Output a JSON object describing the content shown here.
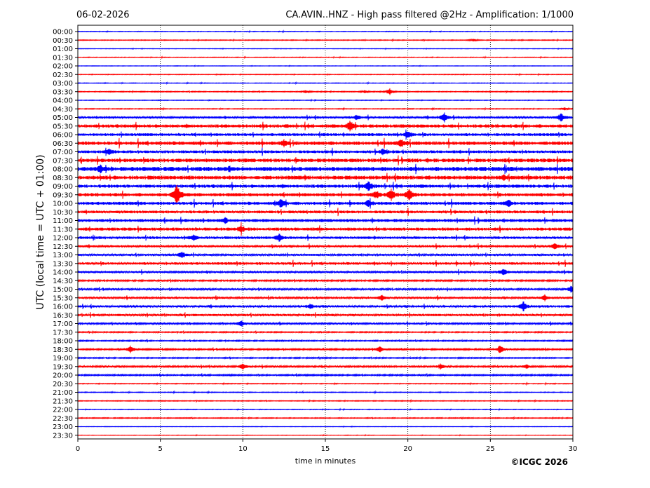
{
  "header": {
    "date": "06-02-2026",
    "title": "CA.AVIN..HNZ - High pass filtered @2Hz - Amplification: 1/1000"
  },
  "footer": {
    "copyright": "©ICGC 2026"
  },
  "chart_data": {
    "type": "line",
    "title": "CA.AVIN..HNZ - High pass filtered @2Hz - Amplification: 1/1000",
    "xlabel": "time in minutes",
    "ylabel": "UTC (local time = UTC + 01:00)",
    "xlim": [
      0,
      30
    ],
    "x_ticks": [
      "0",
      "5",
      "10",
      "15",
      "20",
      "25",
      "30"
    ],
    "grid": "vertical dotted every 5 minutes",
    "row_labels": [
      "00:00",
      "00:30",
      "01:00",
      "01:30",
      "02:00",
      "02:30",
      "03:00",
      "03:30",
      "04:00",
      "04:30",
      "05:00",
      "05:30",
      "06:00",
      "06:30",
      "07:00",
      "07:30",
      "08:00",
      "08:30",
      "09:00",
      "09:30",
      "10:00",
      "10:30",
      "11:00",
      "11:30",
      "12:00",
      "12:30",
      "13:00",
      "13:30",
      "14:00",
      "14:30",
      "15:00",
      "15:30",
      "16:00",
      "16:30",
      "17:00",
      "17:30",
      "18:00",
      "18:30",
      "19:00",
      "19:30",
      "20:00",
      "20:30",
      "21:00",
      "21:30",
      "22:00",
      "22:30",
      "23:00",
      "23:30"
    ],
    "row_colors": [
      "#0000ff",
      "#ff0000"
    ],
    "noise_level": [
      0.4,
      0.5,
      0.3,
      0.4,
      0.3,
      0.4,
      0.4,
      0.6,
      0.4,
      0.5,
      1.6,
      2.4,
      2.0,
      2.6,
      2.0,
      2.6,
      3.0,
      2.8,
      2.4,
      2.4,
      2.2,
      2.0,
      2.2,
      2.2,
      1.8,
      1.6,
      1.4,
      1.8,
      1.4,
      1.0,
      1.2,
      1.4,
      1.6,
      1.6,
      1.2,
      0.8,
      0.8,
      1.0,
      0.8,
      1.2,
      1.0,
      0.5,
      0.5,
      0.5,
      0.4,
      0.6,
      0.3,
      0.3
    ],
    "events": [
      {
        "row": "00:30",
        "x": 24.0,
        "amp": 2
      },
      {
        "row": "03:30",
        "x": 18.9,
        "amp": 5
      },
      {
        "row": "03:30",
        "x": 13.8,
        "amp": 2
      },
      {
        "row": "03:30",
        "x": 17.4,
        "amp": 2
      },
      {
        "row": "04:30",
        "x": 29.5,
        "amp": 2
      },
      {
        "row": "05:00",
        "x": 22.2,
        "amp": 6
      },
      {
        "row": "05:00",
        "x": 29.3,
        "amp": 7
      },
      {
        "row": "05:00",
        "x": 16.9,
        "amp": 3
      },
      {
        "row": "05:30",
        "x": 16.5,
        "amp": 7
      },
      {
        "row": "06:00",
        "x": 20.0,
        "amp": 6
      },
      {
        "row": "06:30",
        "x": 12.5,
        "amp": 4
      },
      {
        "row": "06:30",
        "x": 19.6,
        "amp": 5
      },
      {
        "row": "07:00",
        "x": 1.9,
        "amp": 5
      },
      {
        "row": "07:00",
        "x": 18.5,
        "amp": 4
      },
      {
        "row": "08:00",
        "x": 1.4,
        "amp": 5
      },
      {
        "row": "08:00",
        "x": 9.2,
        "amp": 3
      },
      {
        "row": "08:30",
        "x": 25.8,
        "amp": 3
      },
      {
        "row": "09:00",
        "x": 17.6,
        "amp": 7
      },
      {
        "row": "09:30",
        "x": 6.0,
        "amp": 18
      },
      {
        "row": "09:30",
        "x": 19.0,
        "amp": 9
      },
      {
        "row": "09:30",
        "x": 20.1,
        "amp": 9
      },
      {
        "row": "09:30",
        "x": 18.1,
        "amp": 5
      },
      {
        "row": "10:00",
        "x": 12.3,
        "amp": 7
      },
      {
        "row": "10:00",
        "x": 17.6,
        "amp": 5
      },
      {
        "row": "10:00",
        "x": 26.1,
        "amp": 5
      },
      {
        "row": "11:00",
        "x": 8.9,
        "amp": 4
      },
      {
        "row": "11:30",
        "x": 9.9,
        "amp": 5
      },
      {
        "row": "12:00",
        "x": 12.2,
        "amp": 6
      },
      {
        "row": "12:00",
        "x": 7.0,
        "amp": 4
      },
      {
        "row": "12:30",
        "x": 28.9,
        "amp": 5
      },
      {
        "row": "13:00",
        "x": 6.3,
        "amp": 5
      },
      {
        "row": "14:00",
        "x": 25.8,
        "amp": 5
      },
      {
        "row": "15:00",
        "x": 29.9,
        "amp": 5
      },
      {
        "row": "15:30",
        "x": 18.4,
        "amp": 4
      },
      {
        "row": "15:30",
        "x": 28.3,
        "amp": 4
      },
      {
        "row": "16:00",
        "x": 27.0,
        "amp": 7
      },
      {
        "row": "16:00",
        "x": 14.1,
        "amp": 3
      },
      {
        "row": "17:00",
        "x": 9.9,
        "amp": 5
      },
      {
        "row": "18:30",
        "x": 3.2,
        "amp": 6
      },
      {
        "row": "18:30",
        "x": 18.3,
        "amp": 5
      },
      {
        "row": "18:30",
        "x": 25.6,
        "amp": 7
      },
      {
        "row": "19:30",
        "x": 10.0,
        "amp": 5
      },
      {
        "row": "19:30",
        "x": 22.0,
        "amp": 4
      },
      {
        "row": "19:30",
        "x": 27.2,
        "amp": 3
      }
    ]
  }
}
